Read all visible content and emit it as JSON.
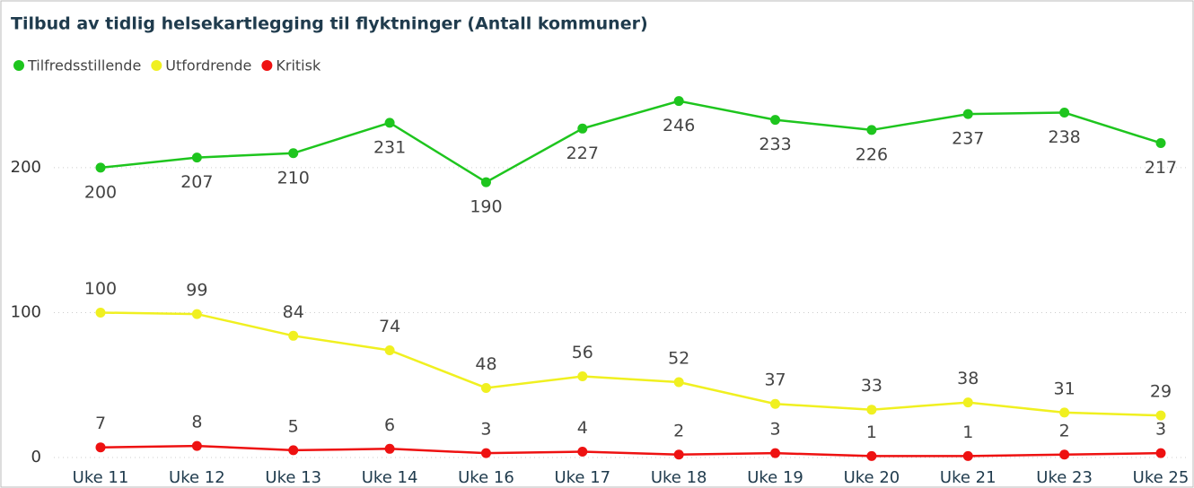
{
  "chart_data": {
    "type": "line",
    "title": "Tilbud av tidlig helsekartlegging til flyktninger (Antall kommuner)",
    "categories": [
      "Uke 11",
      "Uke 12",
      "Uke 13",
      "Uke 14",
      "Uke 16",
      "Uke 17",
      "Uke 18",
      "Uke 19",
      "Uke 20",
      "Uke 21",
      "Uke 23",
      "Uke 25"
    ],
    "series": [
      {
        "name": "Tilfredsstillende",
        "color": "#1ec51e",
        "values": [
          200,
          207,
          210,
          231,
          190,
          227,
          246,
          233,
          226,
          237,
          238,
          217
        ]
      },
      {
        "name": "Utfordrende",
        "color": "#f0f020",
        "values": [
          100,
          99,
          84,
          74,
          48,
          56,
          52,
          37,
          33,
          38,
          31,
          29
        ]
      },
      {
        "name": "Kritisk",
        "color": "#ee1111",
        "values": [
          7,
          8,
          5,
          6,
          3,
          4,
          2,
          3,
          1,
          1,
          2,
          3
        ]
      }
    ],
    "ylim": [
      0,
      260
    ],
    "yticks": [
      0,
      100,
      200
    ],
    "grid": true,
    "legend": "top-left"
  }
}
